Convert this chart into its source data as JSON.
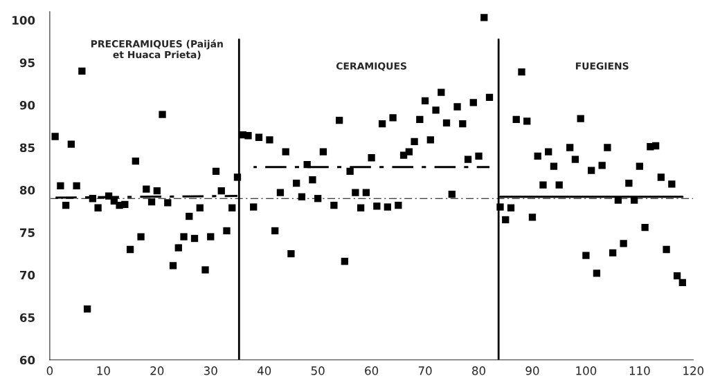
{
  "chart_data": {
    "type": "scatter",
    "xlim": [
      0,
      120
    ],
    "ylim": [
      60,
      101
    ],
    "xticks": [
      0,
      10,
      20,
      30,
      40,
      50,
      60,
      70,
      80,
      90,
      100,
      110,
      120
    ],
    "yticks": [
      60,
      65,
      70,
      75,
      80,
      85,
      90,
      95,
      100
    ],
    "marker": "square",
    "grid": false,
    "legend": false,
    "annotations": [
      "PRECERAMIQUES (Paiján\net Huaca Prieta)",
      "CERAMIQUES",
      "FUEGIENS"
    ],
    "ref_lines": [
      {
        "axis": "y",
        "value": 79,
        "line_style": "dashed",
        "color": "#000000"
      },
      {
        "axis": "x",
        "value": 35.3,
        "line_style": "solid",
        "color": "#000000"
      },
      {
        "axis": "x",
        "value": 83.7,
        "line_style": "solid",
        "color": "#000000"
      }
    ],
    "series": [
      {
        "color": "#000000",
        "x": [
          1,
          2,
          3,
          4,
          5,
          6,
          7,
          8,
          9,
          11,
          12,
          13,
          14,
          15,
          16,
          17,
          18,
          19,
          20,
          21,
          22,
          23,
          24,
          25,
          26,
          27,
          28,
          29,
          30,
          31,
          32,
          33,
          34,
          35
        ],
        "values": [
          86.3,
          80.5,
          78.2,
          85.4,
          80.5,
          94.0,
          66.0,
          79.0,
          77.9,
          79.3,
          78.7,
          78.2,
          78.3,
          73.0,
          83.4,
          74.5,
          80.1,
          78.6,
          79.9,
          88.9,
          78.5,
          71.1,
          73.2,
          74.5,
          76.9,
          74.3,
          77.9,
          70.6,
          74.5,
          82.2,
          79.9,
          75.2,
          77.9,
          81.5
        ]
      },
      {
        "color": "#000000",
        "x": [
          36,
          37,
          38,
          39,
          41,
          42,
          43,
          44,
          45,
          46,
          47,
          48,
          49,
          50,
          51,
          53,
          54,
          55,
          56,
          57,
          58,
          59,
          60,
          61,
          62,
          63,
          64,
          65,
          66,
          67,
          68,
          69,
          70,
          71,
          72,
          73,
          74,
          75,
          76,
          77,
          78,
          79,
          80,
          81,
          82
        ],
        "values": [
          86.5,
          86.4,
          78.0,
          86.2,
          85.9,
          75.2,
          79.7,
          84.5,
          72.5,
          80.8,
          79.2,
          83.0,
          81.2,
          79.0,
          84.5,
          78.2,
          88.2,
          71.6,
          82.2,
          79.7,
          77.9,
          79.7,
          83.8,
          78.1,
          87.8,
          78.0,
          88.5,
          78.2,
          84.1,
          84.5,
          85.7,
          88.3,
          90.5,
          85.9,
          89.4,
          91.5,
          87.9,
          79.5,
          89.8,
          87.8,
          83.6,
          90.3,
          84.0,
          100.3,
          90.9
        ]
      },
      {
        "color": "#000000",
        "x": [
          84,
          85,
          86,
          87,
          88,
          89,
          90,
          91,
          92,
          93,
          94,
          95,
          97,
          98,
          99,
          100,
          101,
          102,
          103,
          104,
          105,
          106,
          107,
          108,
          109,
          110,
          111,
          112,
          113,
          114,
          115,
          116,
          117,
          118
        ],
        "values": [
          78.0,
          76.5,
          77.9,
          88.3,
          93.9,
          88.1,
          76.8,
          84.0,
          80.6,
          84.5,
          82.8,
          80.6,
          85.0,
          83.6,
          88.4,
          72.3,
          82.3,
          70.2,
          82.9,
          85.0,
          72.6,
          78.8,
          73.7,
          80.8,
          78.8,
          82.8,
          75.6,
          85.1,
          85.2,
          81.5,
          73.0,
          80.7,
          69.9,
          69.1
        ]
      },
      {
        "type": "line",
        "color": "#000000",
        "marker": "none",
        "line_style": "dashed",
        "x": [
          0,
          35
        ],
        "values": [
          79.1,
          79.3
        ]
      },
      {
        "type": "line",
        "color": "#000000",
        "marker": "none",
        "line_style": "dashed",
        "x": [
          38,
          82
        ],
        "values": [
          82.7,
          82.7
        ]
      },
      {
        "type": "line",
        "color": "#000000",
        "marker": "none",
        "line_style": "solid",
        "x": [
          84,
          118
        ],
        "values": [
          79.2,
          79.2
        ]
      }
    ]
  }
}
